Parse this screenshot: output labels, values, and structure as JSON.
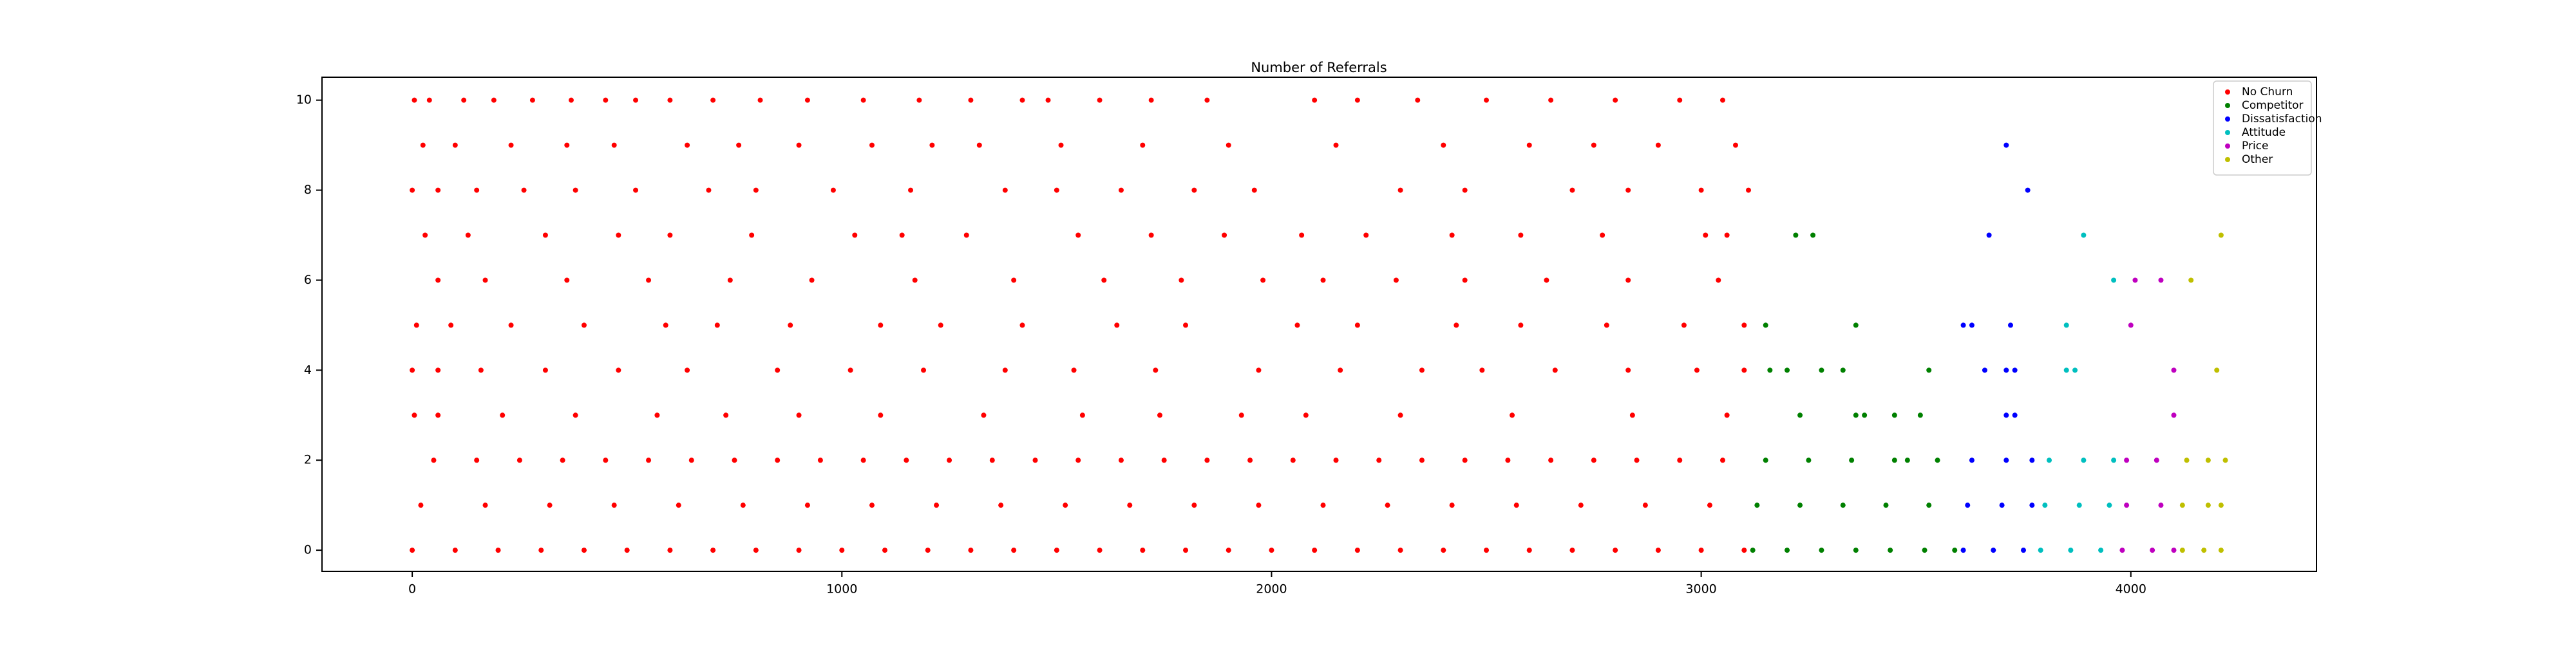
{
  "chart_data": {
    "type": "scatter",
    "title": "Number of Referrals",
    "xlim": [
      -210,
      4432
    ],
    "ylim": [
      -0.47,
      10.51
    ],
    "xticks": [
      0,
      1000,
      2000,
      3000,
      4000
    ],
    "yticks": [
      0,
      2,
      4,
      6,
      8,
      10
    ],
    "legend": "upper right",
    "series": [
      {
        "name": "No Churn",
        "color": "#ff0000",
        "x": [
          0,
          100,
          200,
          300,
          400,
          500,
          600,
          700,
          800,
          900,
          1000,
          1100,
          1200,
          1300,
          1400,
          1500,
          1600,
          1700,
          1800,
          1900,
          2000,
          2100,
          2200,
          2300,
          2400,
          2500,
          2600,
          2700,
          2800,
          2900,
          3000,
          3100,
          20,
          170,
          320,
          470,
          620,
          770,
          920,
          1070,
          1220,
          1370,
          1520,
          1670,
          1820,
          1970,
          2120,
          2270,
          2420,
          2570,
          2720,
          2870,
          3020,
          50,
          150,
          250,
          350,
          450,
          550,
          650,
          750,
          850,
          950,
          1050,
          1150,
          1250,
          1350,
          1450,
          1550,
          1650,
          1750,
          1850,
          1950,
          2050,
          2150,
          2250,
          2350,
          2450,
          2550,
          2650,
          2750,
          2850,
          2950,
          3050,
          5,
          40,
          120,
          190,
          280,
          370,
          450,
          520,
          600,
          700,
          810,
          920,
          1050,
          1180,
          1300,
          1420,
          1480,
          1600,
          1720,
          1850,
          2100,
          2200,
          2340,
          2500,
          2650,
          2800,
          2950,
          3050,
          25,
          100,
          230,
          360,
          470,
          640,
          760,
          900,
          1070,
          1210,
          1320,
          1510,
          1700,
          1900,
          2150,
          2400,
          2600,
          2750,
          2900,
          3080,
          0,
          60,
          150,
          260,
          380,
          520,
          690,
          800,
          980,
          1160,
          1380,
          1500,
          1650,
          1820,
          1960,
          2300,
          2450,
          2700,
          2830,
          3000,
          3110,
          30,
          130,
          310,
          480,
          600,
          790,
          1030,
          1140,
          1290,
          1550,
          1720,
          1890,
          2070,
          2220,
          2420,
          2580,
          2770,
          3010,
          3060,
          60,
          170,
          360,
          550,
          740,
          930,
          1170,
          1400,
          1610,
          1790,
          1980,
          2120,
          2290,
          2450,
          2640,
          2830,
          3040,
          10,
          90,
          230,
          400,
          590,
          710,
          880,
          1090,
          1230,
          1420,
          1640,
          1800,
          2060,
          2200,
          2430,
          2580,
          2780,
          2960,
          3100,
          0,
          60,
          160,
          310,
          480,
          640,
          850,
          1020,
          1190,
          1380,
          1540,
          1730,
          1970,
          2160,
          2350,
          2490,
          2660,
          2830,
          2990,
          3100,
          5,
          60,
          210,
          380,
          570,
          730,
          900,
          1090,
          1330,
          1560,
          1740,
          1930,
          2080,
          2300,
          2560,
          2840,
          3060
        ],
        "values": [
          0,
          0,
          0,
          0,
          0,
          0,
          0,
          0,
          0,
          0,
          0,
          0,
          0,
          0,
          0,
          0,
          0,
          0,
          0,
          0,
          0,
          0,
          0,
          0,
          0,
          0,
          0,
          0,
          0,
          0,
          0,
          0,
          1,
          1,
          1,
          1,
          1,
          1,
          1,
          1,
          1,
          1,
          1,
          1,
          1,
          1,
          1,
          1,
          1,
          1,
          1,
          1,
          1,
          2,
          2,
          2,
          2,
          2,
          2,
          2,
          2,
          2,
          2,
          2,
          2,
          2,
          2,
          2,
          2,
          2,
          2,
          2,
          2,
          2,
          2,
          2,
          2,
          2,
          2,
          2,
          2,
          2,
          2,
          2,
          10,
          10,
          10,
          10,
          10,
          10,
          10,
          10,
          10,
          10,
          10,
          10,
          10,
          10,
          10,
          10,
          10,
          10,
          10,
          10,
          10,
          10,
          10,
          10,
          10,
          10,
          10,
          10,
          9,
          9,
          9,
          9,
          9,
          9,
          9,
          9,
          9,
          9,
          9,
          9,
          9,
          9,
          9,
          9,
          9,
          9,
          9,
          9,
          8,
          8,
          8,
          8,
          8,
          8,
          8,
          8,
          8,
          8,
          8,
          8,
          8,
          8,
          8,
          8,
          8,
          8,
          8,
          8,
          8,
          7,
          7,
          7,
          7,
          7,
          7,
          7,
          7,
          7,
          7,
          7,
          7,
          7,
          7,
          7,
          7,
          7,
          7,
          7,
          6,
          6,
          6,
          6,
          6,
          6,
          6,
          6,
          6,
          6,
          6,
          6,
          6,
          6,
          6,
          6,
          6,
          5,
          5,
          5,
          5,
          5,
          5,
          5,
          5,
          5,
          5,
          5,
          5,
          5,
          5,
          5,
          5,
          5,
          5,
          5,
          4,
          4,
          4,
          4,
          4,
          4,
          4,
          4,
          4,
          4,
          4,
          4,
          4,
          4,
          4,
          4,
          4,
          4,
          4,
          4,
          3,
          3,
          3,
          3,
          3,
          3,
          3,
          3,
          3,
          3,
          3,
          3,
          3,
          3,
          3,
          3,
          3
        ]
      },
      {
        "name": "Competitor",
        "color": "#008000",
        "x": [
          3120,
          3200,
          3280,
          3360,
          3440,
          3520,
          3590,
          3130,
          3230,
          3330,
          3430,
          3530,
          3150,
          3250,
          3350,
          3450,
          3550,
          3220,
          3260,
          3150,
          3360,
          3160,
          3200,
          3280,
          3330,
          3530,
          3230,
          3360,
          3380,
          3450,
          3510,
          3480
        ],
        "values": [
          0,
          0,
          0,
          0,
          0,
          0,
          0,
          1,
          1,
          1,
          1,
          1,
          2,
          2,
          2,
          2,
          2,
          7,
          7,
          5,
          5,
          4,
          4,
          4,
          4,
          4,
          3,
          3,
          3,
          3,
          3,
          2
        ]
      },
      {
        "name": "Dissatisfaction",
        "color": "#0000ff",
        "x": [
          3610,
          3680,
          3750,
          3620,
          3700,
          3770,
          3630,
          3710,
          3770,
          3710,
          3760,
          3670,
          3610,
          3630,
          3720,
          3660,
          3710,
          3730,
          3710,
          3730
        ],
        "values": [
          0,
          0,
          0,
          1,
          1,
          1,
          2,
          2,
          2,
          9,
          8,
          7,
          5,
          5,
          5,
          4,
          4,
          4,
          3,
          3
        ]
      },
      {
        "name": "Attitude",
        "color": "#00bfbf",
        "x": [
          3790,
          3860,
          3930,
          3800,
          3880,
          3950,
          3810,
          3890,
          3960,
          3890,
          3960,
          3850,
          3850,
          3870
        ],
        "values": [
          0,
          0,
          0,
          1,
          1,
          1,
          2,
          2,
          2,
          7,
          6,
          5,
          4,
          4
        ]
      },
      {
        "name": "Price",
        "color": "#bf00bf",
        "x": [
          3980,
          4050,
          4100,
          3990,
          4070,
          3990,
          4060,
          4010,
          4070,
          4000,
          4100,
          4100
        ],
        "values": [
          0,
          0,
          0,
          1,
          1,
          2,
          2,
          6,
          6,
          5,
          4,
          3
        ]
      },
      {
        "name": "Other",
        "color": "#bfbf00",
        "x": [
          4120,
          4170,
          4210,
          4120,
          4180,
          4210,
          4130,
          4180,
          4220,
          4210,
          4140,
          4200
        ],
        "values": [
          0,
          0,
          0,
          1,
          1,
          1,
          2,
          2,
          2,
          7,
          6,
          4
        ]
      }
    ]
  }
}
